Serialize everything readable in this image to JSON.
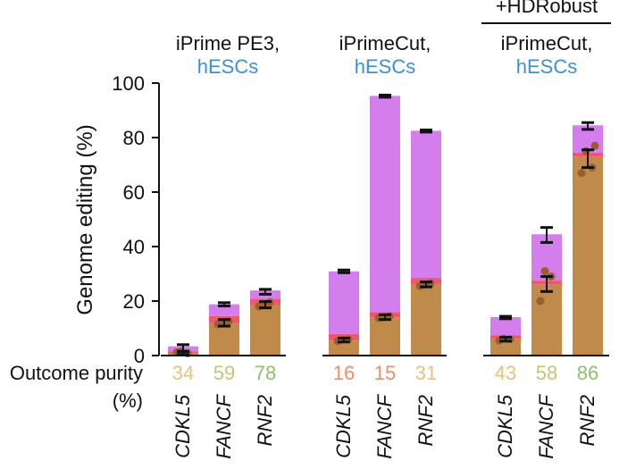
{
  "chart_data": {
    "type": "bar",
    "stacked": true,
    "ylabel": "Genome editing (%)",
    "ylim": [
      0,
      100
    ],
    "yticks": [
      0,
      20,
      40,
      60,
      80,
      100
    ],
    "groups": [
      {
        "title": "iPrime PE3,",
        "subtitle": "hESCs",
        "header": ""
      },
      {
        "title": "iPrimeCut,",
        "subtitle": "hESCs",
        "header": ""
      },
      {
        "title": "iPrimeCut,",
        "subtitle": "hESCs",
        "header": "+HDRobust"
      }
    ],
    "purity_label": {
      "line1": "Outcome purity",
      "line2": "(%)"
    },
    "bars": [
      {
        "group": 0,
        "gene": "CDKL5",
        "precise": 1.0,
        "indel": 0.5,
        "other": 1.9,
        "err_top": [
          1.5,
          4.0
        ],
        "err_mid": [
          0.4,
          1.6
        ],
        "dots": [
          1.2,
          0.8,
          1.5
        ],
        "purity": "34"
      },
      {
        "group": 0,
        "gene": "FANCF",
        "precise": 12.0,
        "indel": 2.5,
        "other": 4.3,
        "err_top": [
          18.2,
          19.4
        ],
        "err_mid": [
          10.8,
          13.2
        ],
        "dots": [
          11.5,
          12.5,
          12.0
        ],
        "purity": "59"
      },
      {
        "group": 0,
        "gene": "RNF2",
        "precise": 18.5,
        "indel": 2.3,
        "other": 3.1,
        "err_top": [
          22.5,
          24.3
        ],
        "err_mid": [
          17.5,
          19.8
        ],
        "dots": [
          18.0,
          19.5,
          18.8
        ],
        "purity": "78"
      },
      {
        "group": 1,
        "gene": "CDKL5",
        "precise": 5.5,
        "indel": 2.4,
        "other": 23.0,
        "err_top": [
          30.4,
          31.4
        ],
        "err_mid": [
          5.0,
          6.4
        ],
        "dots": [
          5.3,
          6.0,
          5.8
        ],
        "purity": "16"
      },
      {
        "group": 1,
        "gene": "FANCF",
        "precise": 14.0,
        "indel": 2.0,
        "other": 79.3,
        "err_top": [
          94.8,
          95.6
        ],
        "err_mid": [
          13.2,
          15.0
        ],
        "dots": [
          13.8,
          14.5,
          14.0
        ],
        "purity": "15"
      },
      {
        "group": 1,
        "gene": "RNF2",
        "precise": 26.0,
        "indel": 2.5,
        "other": 54.0,
        "err_top": [
          82.0,
          82.8
        ],
        "err_mid": [
          25.2,
          27.0
        ],
        "dots": [
          25.5,
          26.5,
          26.0
        ],
        "purity": "31"
      },
      {
        "group": 2,
        "gene": "CDKL5",
        "precise": 6.0,
        "indel": 1.5,
        "other": 6.6,
        "err_top": [
          13.5,
          14.4
        ],
        "err_mid": [
          5.3,
          6.7
        ],
        "dots": [
          5.5,
          6.0,
          6.2
        ],
        "purity": "43"
      },
      {
        "group": 2,
        "gene": "FANCF",
        "precise": 26.0,
        "indel": 1.5,
        "other": 17.0,
        "err_top": [
          41.5,
          47.0
        ],
        "err_mid": [
          23.5,
          29.0
        ],
        "dots": [
          20.0,
          29.0,
          31.0
        ],
        "purity": "58"
      },
      {
        "group": 2,
        "gene": "RNF2",
        "precise": 73.0,
        "indel": 1.5,
        "other": 10.0,
        "err_top": [
          83.0,
          85.5
        ],
        "err_mid": [
          69.0,
          75.5
        ],
        "dots": [
          67.0,
          69.0,
          75.0,
          77.0
        ],
        "purity": "86"
      }
    ]
  },
  "colors": {
    "precise": "#c08a4a",
    "indel": "#f0566e",
    "other": "#d47ded",
    "dot": "#9b5f2e",
    "subtitle": "#3d8fd6",
    "purity_low": "#ef8c6b",
    "purity_mid": "#e8c17a",
    "purity_high": "#8ec06f"
  }
}
